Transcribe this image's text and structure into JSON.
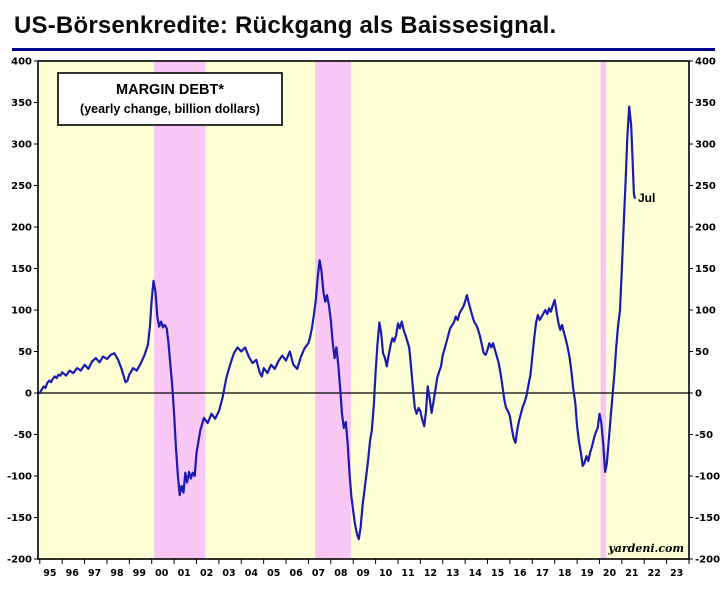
{
  "page": {
    "title": "US-Börsenkredite: Rückgang als Baissesignal.",
    "rule_color": "#00008f"
  },
  "chart_data": {
    "type": "line",
    "title": "MARGIN DEBT*",
    "subtitle": "(yearly change, billion dollars)",
    "source": "yardeni.com",
    "annotation": {
      "label": "Jul",
      "x": 2021.72,
      "y": 235
    },
    "ylim": [
      -200,
      400
    ],
    "ytick_step": 50,
    "yticks": [
      400,
      350,
      300,
      250,
      200,
      150,
      100,
      50,
      0,
      -50,
      -100,
      -150,
      -200
    ],
    "xlim": [
      1994.92,
      2024
    ],
    "x_year_start": 1995,
    "x_year_labels": [
      "95",
      "96",
      "97",
      "98",
      "99",
      "00",
      "01",
      "02",
      "03",
      "04",
      "05",
      "06",
      "07",
      "08",
      "09",
      "10",
      "11",
      "12",
      "13",
      "14",
      "15",
      "16",
      "17",
      "18",
      "19",
      "20",
      "21",
      "22",
      "23"
    ],
    "grid": false,
    "legend_position": "top-left",
    "plot_bg": "#ffffd6",
    "line_color": "#1b1bb0",
    "band_color": "#f8c7f3",
    "zero_line_color": "#000000",
    "recession_bands": [
      [
        2000.1,
        2002.4
      ],
      [
        2007.3,
        2008.9
      ],
      [
        2020.05,
        2020.3
      ]
    ],
    "series": [
      {
        "name": "Margin debt yearly change",
        "points": [
          [
            1995.0,
            0
          ],
          [
            1995.08,
            4
          ],
          [
            1995.17,
            8
          ],
          [
            1995.25,
            6
          ],
          [
            1995.33,
            12
          ],
          [
            1995.42,
            15
          ],
          [
            1995.5,
            13
          ],
          [
            1995.58,
            17
          ],
          [
            1995.67,
            20
          ],
          [
            1995.75,
            18
          ],
          [
            1995.83,
            22
          ],
          [
            1995.92,
            21
          ],
          [
            1996.0,
            25
          ],
          [
            1996.17,
            21
          ],
          [
            1996.33,
            27
          ],
          [
            1996.5,
            24
          ],
          [
            1996.67,
            30
          ],
          [
            1996.83,
            27
          ],
          [
            1997.0,
            34
          ],
          [
            1997.17,
            29
          ],
          [
            1997.33,
            38
          ],
          [
            1997.5,
            42
          ],
          [
            1997.67,
            37
          ],
          [
            1997.83,
            44
          ],
          [
            1998.0,
            41
          ],
          [
            1998.17,
            46
          ],
          [
            1998.33,
            48
          ],
          [
            1998.5,
            40
          ],
          [
            1998.67,
            28
          ],
          [
            1998.83,
            13
          ],
          [
            1998.92,
            15
          ],
          [
            1999.0,
            22
          ],
          [
            1999.17,
            30
          ],
          [
            1999.33,
            27
          ],
          [
            1999.5,
            35
          ],
          [
            1999.67,
            45
          ],
          [
            1999.83,
            58
          ],
          [
            1999.92,
            80
          ],
          [
            2000.0,
            112
          ],
          [
            2000.08,
            135
          ],
          [
            2000.17,
            122
          ],
          [
            2000.25,
            92
          ],
          [
            2000.33,
            80
          ],
          [
            2000.42,
            86
          ],
          [
            2000.5,
            79
          ],
          [
            2000.58,
            82
          ],
          [
            2000.67,
            78
          ],
          [
            2000.75,
            60
          ],
          [
            2000.83,
            35
          ],
          [
            2000.92,
            8
          ],
          [
            2001.0,
            -25
          ],
          [
            2001.08,
            -65
          ],
          [
            2001.17,
            -100
          ],
          [
            2001.25,
            -123
          ],
          [
            2001.33,
            -112
          ],
          [
            2001.42,
            -120
          ],
          [
            2001.5,
            -96
          ],
          [
            2001.58,
            -108
          ],
          [
            2001.67,
            -95
          ],
          [
            2001.75,
            -103
          ],
          [
            2001.83,
            -96
          ],
          [
            2001.92,
            -100
          ],
          [
            2002.0,
            -72
          ],
          [
            2002.17,
            -45
          ],
          [
            2002.33,
            -30
          ],
          [
            2002.5,
            -36
          ],
          [
            2002.67,
            -25
          ],
          [
            2002.83,
            -31
          ],
          [
            2003.0,
            -22
          ],
          [
            2003.17,
            -5
          ],
          [
            2003.33,
            18
          ],
          [
            2003.5,
            34
          ],
          [
            2003.67,
            48
          ],
          [
            2003.83,
            55
          ],
          [
            2004.0,
            50
          ],
          [
            2004.17,
            55
          ],
          [
            2004.33,
            44
          ],
          [
            2004.5,
            36
          ],
          [
            2004.67,
            40
          ],
          [
            2004.83,
            24
          ],
          [
            2004.92,
            20
          ],
          [
            2005.0,
            30
          ],
          [
            2005.17,
            24
          ],
          [
            2005.33,
            34
          ],
          [
            2005.5,
            29
          ],
          [
            2005.67,
            39
          ],
          [
            2005.83,
            45
          ],
          [
            2006.0,
            39
          ],
          [
            2006.17,
            50
          ],
          [
            2006.33,
            34
          ],
          [
            2006.5,
            29
          ],
          [
            2006.67,
            44
          ],
          [
            2006.83,
            54
          ],
          [
            2007.0,
            60
          ],
          [
            2007.08,
            68
          ],
          [
            2007.17,
            80
          ],
          [
            2007.25,
            95
          ],
          [
            2007.33,
            112
          ],
          [
            2007.42,
            140
          ],
          [
            2007.5,
            160
          ],
          [
            2007.58,
            148
          ],
          [
            2007.67,
            122
          ],
          [
            2007.75,
            110
          ],
          [
            2007.83,
            118
          ],
          [
            2007.92,
            105
          ],
          [
            2008.0,
            88
          ],
          [
            2008.08,
            62
          ],
          [
            2008.17,
            42
          ],
          [
            2008.25,
            55
          ],
          [
            2008.33,
            35
          ],
          [
            2008.42,
            5
          ],
          [
            2008.5,
            -25
          ],
          [
            2008.58,
            -42
          ],
          [
            2008.67,
            -35
          ],
          [
            2008.75,
            -60
          ],
          [
            2008.83,
            -95
          ],
          [
            2008.92,
            -125
          ],
          [
            2009.0,
            -142
          ],
          [
            2009.08,
            -158
          ],
          [
            2009.17,
            -170
          ],
          [
            2009.25,
            -176
          ],
          [
            2009.33,
            -162
          ],
          [
            2009.42,
            -135
          ],
          [
            2009.5,
            -118
          ],
          [
            2009.58,
            -100
          ],
          [
            2009.67,
            -80
          ],
          [
            2009.75,
            -58
          ],
          [
            2009.83,
            -45
          ],
          [
            2009.92,
            -15
          ],
          [
            2010.0,
            25
          ],
          [
            2010.08,
            58
          ],
          [
            2010.17,
            85
          ],
          [
            2010.25,
            72
          ],
          [
            2010.33,
            48
          ],
          [
            2010.42,
            42
          ],
          [
            2010.5,
            32
          ],
          [
            2010.58,
            45
          ],
          [
            2010.67,
            58
          ],
          [
            2010.75,
            66
          ],
          [
            2010.83,
            62
          ],
          [
            2010.92,
            70
          ],
          [
            2011.0,
            84
          ],
          [
            2011.08,
            78
          ],
          [
            2011.17,
            86
          ],
          [
            2011.25,
            76
          ],
          [
            2011.33,
            70
          ],
          [
            2011.42,
            62
          ],
          [
            2011.5,
            55
          ],
          [
            2011.58,
            32
          ],
          [
            2011.67,
            5
          ],
          [
            2011.75,
            -18
          ],
          [
            2011.83,
            -25
          ],
          [
            2011.92,
            -18
          ],
          [
            2012.0,
            -22
          ],
          [
            2012.08,
            -32
          ],
          [
            2012.17,
            -40
          ],
          [
            2012.25,
            -22
          ],
          [
            2012.33,
            8
          ],
          [
            2012.42,
            -8
          ],
          [
            2012.5,
            -24
          ],
          [
            2012.58,
            -12
          ],
          [
            2012.67,
            4
          ],
          [
            2012.75,
            18
          ],
          [
            2012.83,
            25
          ],
          [
            2012.92,
            32
          ],
          [
            2013.0,
            45
          ],
          [
            2013.17,
            62
          ],
          [
            2013.33,
            78
          ],
          [
            2013.5,
            85
          ],
          [
            2013.58,
            92
          ],
          [
            2013.67,
            88
          ],
          [
            2013.75,
            96
          ],
          [
            2013.83,
            100
          ],
          [
            2013.92,
            104
          ],
          [
            2014.0,
            110
          ],
          [
            2014.08,
            118
          ],
          [
            2014.17,
            108
          ],
          [
            2014.25,
            100
          ],
          [
            2014.33,
            92
          ],
          [
            2014.42,
            85
          ],
          [
            2014.5,
            82
          ],
          [
            2014.58,
            76
          ],
          [
            2014.67,
            68
          ],
          [
            2014.75,
            58
          ],
          [
            2014.83,
            48
          ],
          [
            2014.92,
            46
          ],
          [
            2015.0,
            52
          ],
          [
            2015.08,
            60
          ],
          [
            2015.17,
            55
          ],
          [
            2015.25,
            60
          ],
          [
            2015.33,
            52
          ],
          [
            2015.42,
            44
          ],
          [
            2015.5,
            36
          ],
          [
            2015.58,
            24
          ],
          [
            2015.67,
            8
          ],
          [
            2015.75,
            -8
          ],
          [
            2015.83,
            -18
          ],
          [
            2015.92,
            -22
          ],
          [
            2016.0,
            -28
          ],
          [
            2016.08,
            -42
          ],
          [
            2016.17,
            -55
          ],
          [
            2016.25,
            -60
          ],
          [
            2016.33,
            -44
          ],
          [
            2016.42,
            -32
          ],
          [
            2016.5,
            -24
          ],
          [
            2016.58,
            -16
          ],
          [
            2016.67,
            -10
          ],
          [
            2016.75,
            -2
          ],
          [
            2016.83,
            10
          ],
          [
            2016.92,
            22
          ],
          [
            2017.0,
            44
          ],
          [
            2017.08,
            65
          ],
          [
            2017.17,
            85
          ],
          [
            2017.25,
            94
          ],
          [
            2017.33,
            88
          ],
          [
            2017.42,
            92
          ],
          [
            2017.5,
            96
          ],
          [
            2017.58,
            100
          ],
          [
            2017.67,
            95
          ],
          [
            2017.75,
            102
          ],
          [
            2017.83,
            98
          ],
          [
            2017.92,
            106
          ],
          [
            2018.0,
            112
          ],
          [
            2018.08,
            98
          ],
          [
            2018.17,
            84
          ],
          [
            2018.25,
            76
          ],
          [
            2018.33,
            82
          ],
          [
            2018.42,
            72
          ],
          [
            2018.5,
            64
          ],
          [
            2018.58,
            55
          ],
          [
            2018.67,
            42
          ],
          [
            2018.75,
            25
          ],
          [
            2018.83,
            5
          ],
          [
            2018.92,
            -12
          ],
          [
            2019.0,
            -40
          ],
          [
            2019.08,
            -58
          ],
          [
            2019.17,
            -72
          ],
          [
            2019.25,
            -88
          ],
          [
            2019.33,
            -84
          ],
          [
            2019.42,
            -76
          ],
          [
            2019.5,
            -82
          ],
          [
            2019.58,
            -72
          ],
          [
            2019.67,
            -64
          ],
          [
            2019.75,
            -55
          ],
          [
            2019.83,
            -48
          ],
          [
            2019.92,
            -42
          ],
          [
            2020.0,
            -25
          ],
          [
            2020.08,
            -35
          ],
          [
            2020.17,
            -62
          ],
          [
            2020.25,
            -95
          ],
          [
            2020.33,
            -85
          ],
          [
            2020.42,
            -55
          ],
          [
            2020.5,
            -30
          ],
          [
            2020.58,
            -5
          ],
          [
            2020.67,
            25
          ],
          [
            2020.75,
            55
          ],
          [
            2020.83,
            80
          ],
          [
            2020.92,
            100
          ],
          [
            2021.0,
            148
          ],
          [
            2021.08,
            200
          ],
          [
            2021.17,
            255
          ],
          [
            2021.25,
            310
          ],
          [
            2021.33,
            345
          ],
          [
            2021.42,
            322
          ],
          [
            2021.46,
            295
          ],
          [
            2021.5,
            268
          ],
          [
            2021.54,
            240
          ],
          [
            2021.58,
            235
          ]
        ]
      }
    ]
  }
}
